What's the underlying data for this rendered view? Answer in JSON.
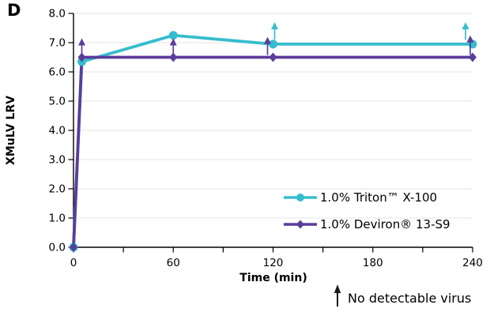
{
  "panel_label": "D",
  "colors": {
    "triton": "#36BDCD",
    "deviron": "#5B3C9B",
    "grid": "#E4E4E4",
    "axis": "#000000",
    "annotation_arrow": "#1A1A1A"
  },
  "chart_data": {
    "type": "line",
    "title": "",
    "xlabel": "Time (min)",
    "ylabel": "XMuLV LRV",
    "xlim": [
      0,
      240
    ],
    "ylim": [
      0.0,
      8.0
    ],
    "xticks_labeled": [
      0,
      60,
      120,
      180,
      240
    ],
    "xticks_minor": [
      0,
      30,
      60,
      90,
      120,
      150,
      180,
      210,
      240
    ],
    "yticks": [
      0,
      1,
      2,
      3,
      4,
      5,
      6,
      7,
      8
    ],
    "ytick_labels": [
      "0.0",
      "1.0",
      "2.0",
      "3.0",
      "4.0",
      "5.0",
      "6.0",
      "7.0",
      "8.0"
    ],
    "grid": "horizontal",
    "legend_position": "inside-lower-right",
    "series": [
      {
        "name": "1.0% Triton™ X-100",
        "color": "#36BDCD",
        "marker": "circle",
        "x": [
          0,
          5,
          60,
          120,
          240
        ],
        "y": [
          0.0,
          6.35,
          7.25,
          6.95,
          6.95
        ]
      },
      {
        "name": "1.0% Deviron® 13-S9",
        "color": "#5B3C9B",
        "marker": "diamond",
        "x": [
          0,
          5,
          60,
          120,
          240
        ],
        "y": [
          0.0,
          6.5,
          6.5,
          6.5,
          6.5
        ]
      }
    ],
    "no_detectable_virus_arrows": [
      {
        "series": 1,
        "t": 5,
        "y_from": 6.58,
        "y_to": 7.15,
        "dx": 0
      },
      {
        "series": 1,
        "t": 60,
        "y_from": 6.58,
        "y_to": 7.15,
        "dx": 0
      },
      {
        "series": 1,
        "t": 120,
        "y_from": 6.58,
        "y_to": 7.2,
        "dx": -7
      },
      {
        "series": 1,
        "t": 240,
        "y_from": 6.58,
        "y_to": 7.25,
        "dx": -3
      },
      {
        "series": 0,
        "t": 120,
        "y_from": 7.1,
        "y_to": 7.7,
        "dx": 2
      },
      {
        "series": 0,
        "t": 240,
        "y_from": 7.1,
        "y_to": 7.7,
        "dx": -9
      }
    ],
    "annotation": {
      "symbol": "up-arrow",
      "text": "No detectable virus"
    }
  }
}
